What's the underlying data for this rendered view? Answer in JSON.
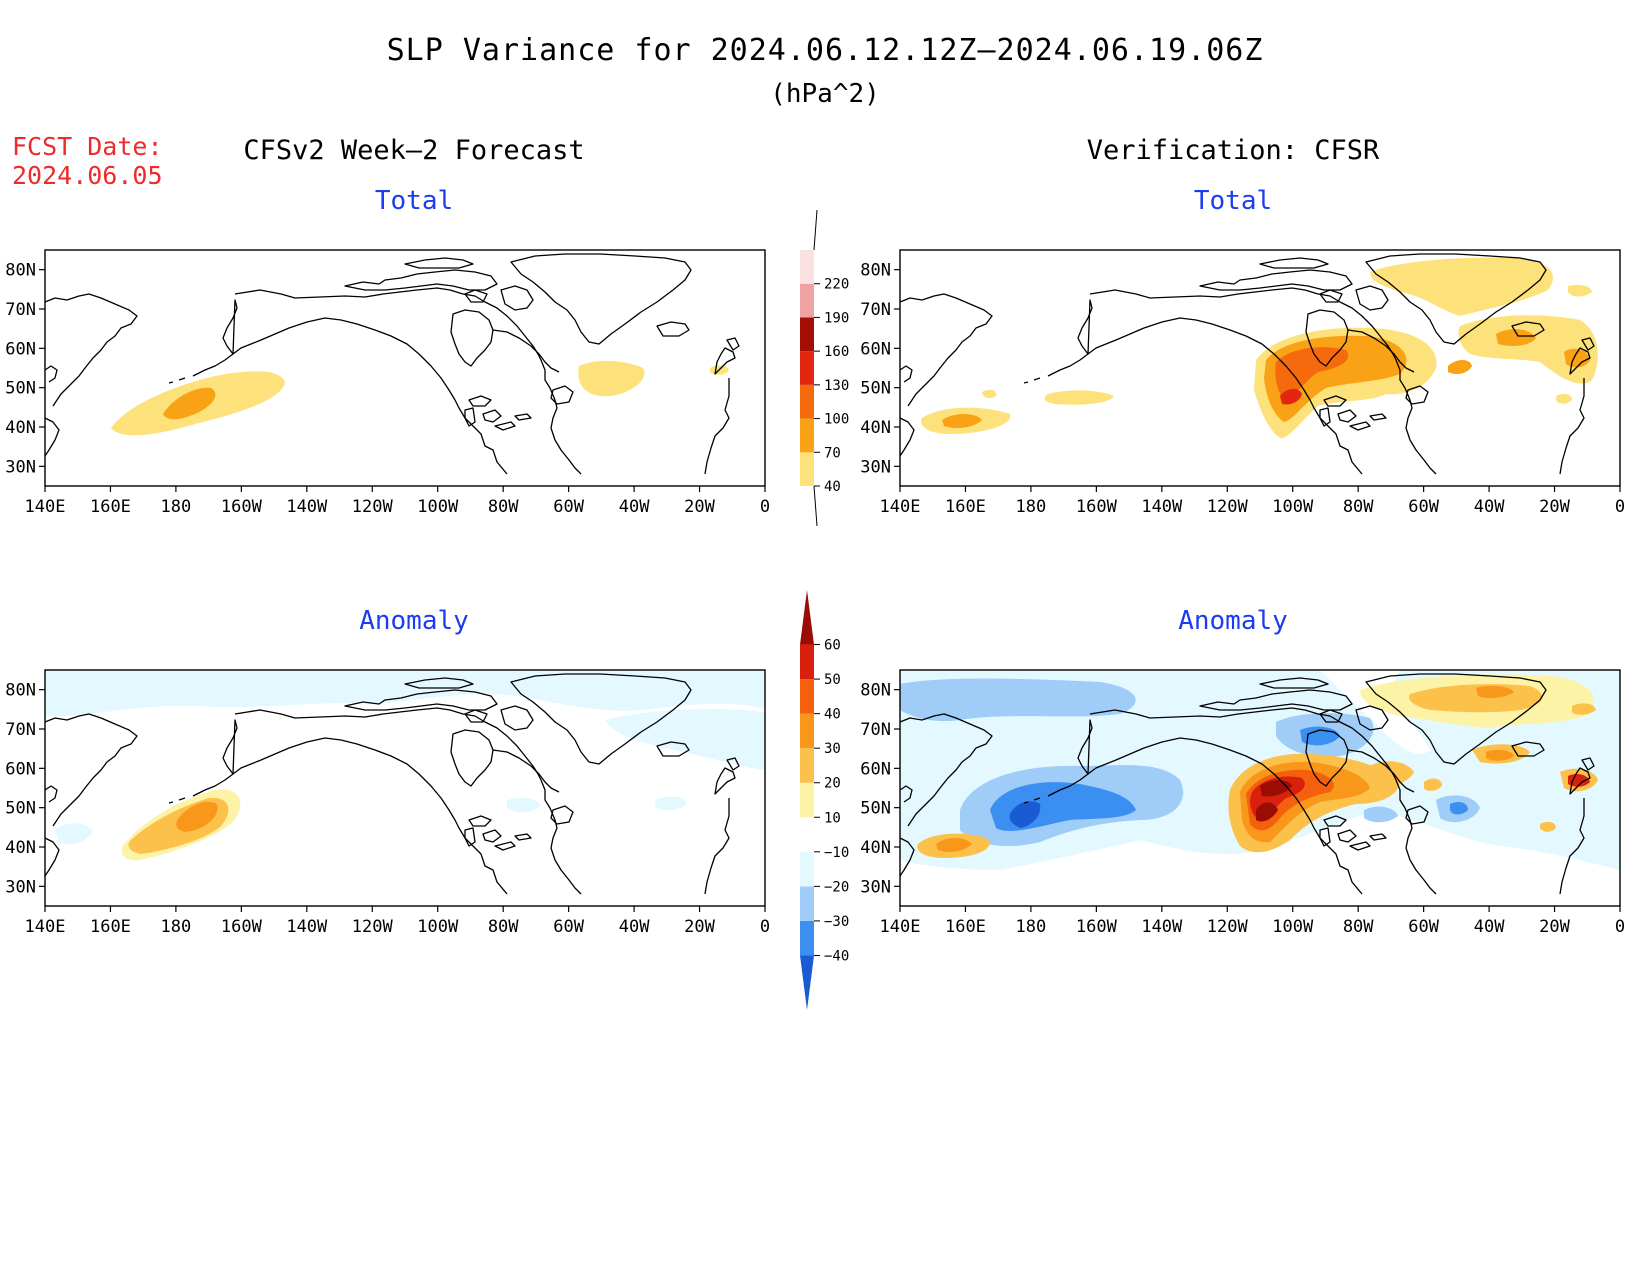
{
  "title": "SLP Variance for 2024.06.12.12Z–2024.06.19.06Z",
  "units": "(hPa^2)",
  "fcst_label": "FCST Date:",
  "fcst_date": "2024.06.05",
  "left_column_title": "CFSv2 Week–2 Forecast",
  "right_column_title": "Verification: CFSR",
  "panels": {
    "forecast_total": {
      "title": "Total"
    },
    "verification_total": {
      "title": "Total"
    },
    "forecast_anomaly": {
      "title": "Anomaly"
    },
    "verification_anomaly": {
      "title": "Anomaly"
    }
  },
  "map_axes": {
    "lon_labels": [
      "140E",
      "160E",
      "180",
      "160W",
      "140W",
      "120W",
      "100W",
      "80W",
      "60W",
      "40W",
      "20W",
      "0"
    ],
    "lat_labels": [
      "80N",
      "70N",
      "60N",
      "50N",
      "40N",
      "30N"
    ],
    "lon_range_deg": [
      140,
      360
    ],
    "lat_range_deg": [
      25,
      85
    ]
  },
  "total_colorbar": {
    "levels": [
      "40",
      "70",
      "100",
      "130",
      "160",
      "190",
      "220"
    ],
    "colors": [
      "#fde17a",
      "#f9a215",
      "#f46a0c",
      "#e3260f",
      "#a40f05",
      "#f0a2a2",
      "#fbe1e1"
    ]
  },
  "anomaly_colorbar": {
    "levels": [
      "−40",
      "−30",
      "−20",
      "−10",
      "10",
      "20",
      "30",
      "40",
      "50",
      "60"
    ],
    "colors": [
      "#1a5bd4",
      "#3b8ff0",
      "#9fcdf7",
      "#e3f8ff",
      "#ffffff",
      "#fdf3a6",
      "#fcc14a",
      "#f9971b",
      "#f4600d",
      "#d9200d",
      "#9a0d05"
    ]
  },
  "shading_colors": {
    "pos1": "#fde17a",
    "pos2": "#fcc14a",
    "pos3": "#f9971b",
    "pos4": "#f4600d",
    "pos5": "#d9200d",
    "pos6": "#9a0d05",
    "neg1": "#e3f8ff",
    "neg2": "#9fcdf7",
    "neg3": "#3b8ff0",
    "neg4": "#1a5bd4"
  }
}
